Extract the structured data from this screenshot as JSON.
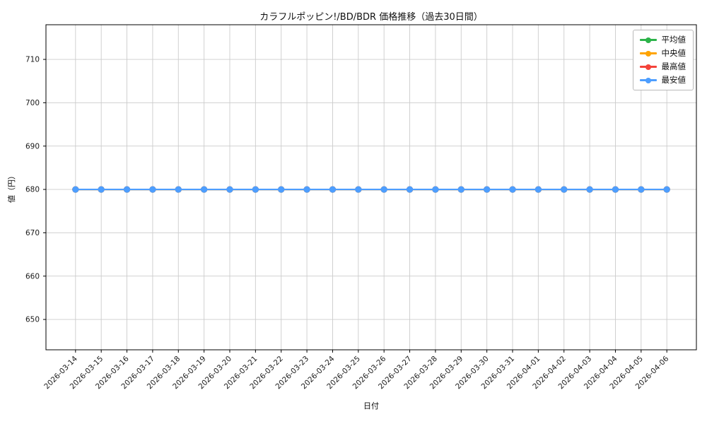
{
  "chart_data": {
    "type": "line",
    "title": "カラフルポッピン!/BD/BDR 価格推移（過去30日間）",
    "xlabel": "日付",
    "ylabel": "値（円）",
    "grid": true,
    "legend_position": "upper right",
    "ylim": [
      643,
      718
    ],
    "yticks": [
      650,
      660,
      670,
      680,
      690,
      700,
      710
    ],
    "categories": [
      "2026-03-14",
      "2026-03-15",
      "2026-03-16",
      "2026-03-17",
      "2026-03-18",
      "2026-03-19",
      "2026-03-20",
      "2026-03-21",
      "2026-03-22",
      "2026-03-23",
      "2026-03-24",
      "2026-03-25",
      "2026-03-26",
      "2026-03-27",
      "2026-03-28",
      "2026-03-29",
      "2026-03-30",
      "2026-03-31",
      "2026-04-01",
      "2026-04-02",
      "2026-04-03",
      "2026-04-04",
      "2026-04-05",
      "2026-04-06"
    ],
    "series": [
      {
        "name": "平均値",
        "color": "#2cb34a",
        "values": [
          680,
          680,
          680,
          680,
          680,
          680,
          680,
          680,
          680,
          680,
          680,
          680,
          680,
          680,
          680,
          680,
          680,
          680,
          680,
          680,
          680,
          680,
          680,
          680
        ]
      },
      {
        "name": "中央値",
        "color": "#ffa400",
        "values": [
          680,
          680,
          680,
          680,
          680,
          680,
          680,
          680,
          680,
          680,
          680,
          680,
          680,
          680,
          680,
          680,
          680,
          680,
          680,
          680,
          680,
          680,
          680,
          680
        ]
      },
      {
        "name": "最高値",
        "color": "#f4433a",
        "values": [
          680,
          680,
          680,
          680,
          680,
          680,
          680,
          680,
          680,
          680,
          680,
          680,
          680,
          680,
          680,
          680,
          680,
          680,
          680,
          680,
          680,
          680,
          680,
          680
        ]
      },
      {
        "name": "最安値",
        "color": "#4d9eff",
        "values": [
          680,
          680,
          680,
          680,
          680,
          680,
          680,
          680,
          680,
          680,
          680,
          680,
          680,
          680,
          680,
          680,
          680,
          680,
          680,
          680,
          680,
          680,
          680,
          680
        ]
      }
    ],
    "colors": {
      "grid": "#cccccc",
      "axis": "#000000",
      "text": "#1a1a1a"
    }
  }
}
